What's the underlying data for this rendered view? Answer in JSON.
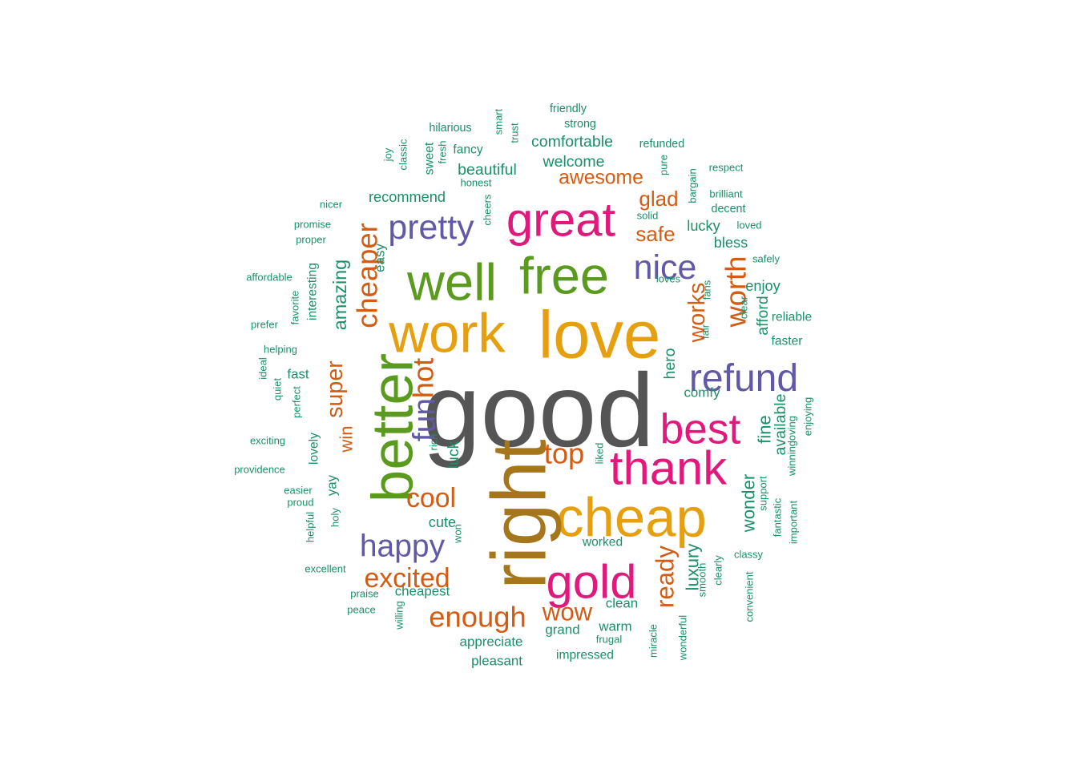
{
  "chart_data": {
    "type": "wordcloud",
    "palette": {
      "grey": "#555555",
      "orange": "#E6A00F",
      "brown": "#A6761D",
      "green": "#5A9A1E",
      "pink": "#E0197C",
      "purple": "#6259A6",
      "rust": "#D35C14",
      "teal": "#1B8F6A"
    },
    "words": [
      {
        "text": "good",
        "color": "grey",
        "weight": 100,
        "rotated": false
      },
      {
        "text": "love",
        "color": "orange",
        "weight": 64,
        "rotated": false
      },
      {
        "text": "work",
        "color": "orange",
        "weight": 53,
        "rotated": false
      },
      {
        "text": "cheap",
        "color": "orange",
        "weight": 53,
        "rotated": false
      },
      {
        "text": "right",
        "color": "brown",
        "weight": 74,
        "rotated": true
      },
      {
        "text": "well",
        "color": "green",
        "weight": 50,
        "rotated": false
      },
      {
        "text": "free",
        "color": "green",
        "weight": 50,
        "rotated": false
      },
      {
        "text": "better",
        "color": "green",
        "weight": 56,
        "rotated": true
      },
      {
        "text": "great",
        "color": "pink",
        "weight": 46,
        "rotated": false
      },
      {
        "text": "gold",
        "color": "pink",
        "weight": 46,
        "rotated": false
      },
      {
        "text": "thank",
        "color": "pink",
        "weight": 46,
        "rotated": false
      },
      {
        "text": "best",
        "color": "pink",
        "weight": 41,
        "rotated": false
      },
      {
        "text": "refund",
        "color": "purple",
        "weight": 37,
        "rotated": false
      },
      {
        "text": "nice",
        "color": "purple",
        "weight": 33,
        "rotated": false
      },
      {
        "text": "pretty",
        "color": "purple",
        "weight": 33,
        "rotated": false
      },
      {
        "text": "happy",
        "color": "purple",
        "weight": 30,
        "rotated": false
      },
      {
        "text": "fun",
        "color": "purple",
        "weight": 30,
        "rotated": true
      },
      {
        "text": "hot",
        "color": "rust",
        "weight": 28,
        "rotated": true
      },
      {
        "text": "cheaper",
        "color": "rust",
        "weight": 28,
        "rotated": true
      },
      {
        "text": "worth",
        "color": "rust",
        "weight": 28,
        "rotated": true
      },
      {
        "text": "top",
        "color": "rust",
        "weight": 28,
        "rotated": false
      },
      {
        "text": "cool",
        "color": "rust",
        "weight": 26,
        "rotated": false
      },
      {
        "text": "excited",
        "color": "rust",
        "weight": 26,
        "rotated": false
      },
      {
        "text": "enough",
        "color": "rust",
        "weight": 28,
        "rotated": false
      },
      {
        "text": "wow",
        "color": "rust",
        "weight": 24,
        "rotated": false
      },
      {
        "text": "ready",
        "color": "rust",
        "weight": 24,
        "rotated": true
      },
      {
        "text": "works",
        "color": "rust",
        "weight": 22,
        "rotated": true
      },
      {
        "text": "super",
        "color": "rust",
        "weight": 22,
        "rotated": true
      },
      {
        "text": "awesome",
        "color": "rust",
        "weight": 19,
        "rotated": false
      },
      {
        "text": "glad",
        "color": "rust",
        "weight": 20,
        "rotated": false
      },
      {
        "text": "safe",
        "color": "rust",
        "weight": 20,
        "rotated": false
      },
      {
        "text": "win",
        "color": "rust",
        "weight": 17,
        "rotated": true
      },
      {
        "text": "amazing",
        "color": "teal",
        "weight": 18,
        "rotated": true
      },
      {
        "text": "luxury",
        "color": "teal",
        "weight": 17,
        "rotated": true
      },
      {
        "text": "wonder",
        "color": "teal",
        "weight": 17,
        "rotated": true
      },
      {
        "text": "fine",
        "color": "teal",
        "weight": 17,
        "rotated": true
      },
      {
        "text": "available",
        "color": "teal",
        "weight": 15,
        "rotated": true
      },
      {
        "text": "luck",
        "color": "teal",
        "weight": 15,
        "rotated": true
      },
      {
        "text": "hero",
        "color": "teal",
        "weight": 15,
        "rotated": true
      },
      {
        "text": "afford",
        "color": "teal",
        "weight": 15,
        "rotated": true
      },
      {
        "text": "comfortable",
        "color": "teal",
        "weight": 15,
        "rotated": false
      },
      {
        "text": "welcome",
        "color": "teal",
        "weight": 15,
        "rotated": false
      },
      {
        "text": "beautiful",
        "color": "teal",
        "weight": 15,
        "rotated": false
      },
      {
        "text": "recommend",
        "color": "teal",
        "weight": 14,
        "rotated": false
      },
      {
        "text": "lucky",
        "color": "teal",
        "weight": 14,
        "rotated": false
      },
      {
        "text": "bless",
        "color": "teal",
        "weight": 14,
        "rotated": false
      },
      {
        "text": "enjoy",
        "color": "teal",
        "weight": 14,
        "rotated": false
      },
      {
        "text": "cute",
        "color": "teal",
        "weight": 14,
        "rotated": false
      },
      {
        "text": "cheapest",
        "color": "teal",
        "weight": 13,
        "rotated": false
      },
      {
        "text": "appreciate",
        "color": "teal",
        "weight": 13,
        "rotated": false
      },
      {
        "text": "grand",
        "color": "teal",
        "weight": 13,
        "rotated": false
      },
      {
        "text": "warm",
        "color": "teal",
        "weight": 13,
        "rotated": false
      },
      {
        "text": "clean",
        "color": "teal",
        "weight": 13,
        "rotated": false
      },
      {
        "text": "pleasant",
        "color": "teal",
        "weight": 13,
        "rotated": false
      },
      {
        "text": "impressed",
        "color": "teal",
        "weight": 12,
        "rotated": false
      },
      {
        "text": "worked",
        "color": "teal",
        "weight": 12,
        "rotated": false
      },
      {
        "text": "fast",
        "color": "teal",
        "weight": 13,
        "rotated": false
      },
      {
        "text": "comfy",
        "color": "teal",
        "weight": 13,
        "rotated": false
      },
      {
        "text": "reliable",
        "color": "teal",
        "weight": 12,
        "rotated": false
      },
      {
        "text": "faster",
        "color": "teal",
        "weight": 12,
        "rotated": false
      },
      {
        "text": "yay",
        "color": "teal",
        "weight": 13,
        "rotated": true
      },
      {
        "text": "easy",
        "color": "teal",
        "weight": 13,
        "rotated": true
      },
      {
        "text": "interesting",
        "color": "teal",
        "weight": 12,
        "rotated": true
      },
      {
        "text": "lovely",
        "color": "teal",
        "weight": 12,
        "rotated": true
      },
      {
        "text": "fancy",
        "color": "teal",
        "weight": 12,
        "rotated": false
      },
      {
        "text": "sweet",
        "color": "teal",
        "weight": 12,
        "rotated": true
      },
      {
        "text": "friendly",
        "color": "teal",
        "weight": 11,
        "rotated": false
      },
      {
        "text": "strong",
        "color": "teal",
        "weight": 11,
        "rotated": false
      },
      {
        "text": "hilarious",
        "color": "teal",
        "weight": 11,
        "rotated": false
      },
      {
        "text": "refunded",
        "color": "teal",
        "weight": 11,
        "rotated": false
      },
      {
        "text": "respect",
        "color": "teal",
        "weight": 10,
        "rotated": false
      },
      {
        "text": "brilliant",
        "color": "teal",
        "weight": 10,
        "rotated": false
      },
      {
        "text": "decent",
        "color": "teal",
        "weight": 11,
        "rotated": false
      },
      {
        "text": "loved",
        "color": "teal",
        "weight": 10,
        "rotated": false
      },
      {
        "text": "safely",
        "color": "teal",
        "weight": 10,
        "rotated": false
      },
      {
        "text": "loves",
        "color": "teal",
        "weight": 10,
        "rotated": false
      },
      {
        "text": "solid",
        "color": "teal",
        "weight": 10,
        "rotated": false
      },
      {
        "text": "honest",
        "color": "teal",
        "weight": 10,
        "rotated": false
      },
      {
        "text": "nicer",
        "color": "teal",
        "weight": 10,
        "rotated": false
      },
      {
        "text": "promise",
        "color": "teal",
        "weight": 10,
        "rotated": false
      },
      {
        "text": "proper",
        "color": "teal",
        "weight": 10,
        "rotated": false
      },
      {
        "text": "affordable",
        "color": "teal",
        "weight": 10,
        "rotated": false
      },
      {
        "text": "prefer",
        "color": "teal",
        "weight": 10,
        "rotated": false
      },
      {
        "text": "helping",
        "color": "teal",
        "weight": 10,
        "rotated": false
      },
      {
        "text": "exciting",
        "color": "teal",
        "weight": 10,
        "rotated": false
      },
      {
        "text": "providence",
        "color": "teal",
        "weight": 10,
        "rotated": false
      },
      {
        "text": "easier",
        "color": "teal",
        "weight": 10,
        "rotated": false
      },
      {
        "text": "proud",
        "color": "teal",
        "weight": 10,
        "rotated": false
      },
      {
        "text": "excellent",
        "color": "teal",
        "weight": 10,
        "rotated": false
      },
      {
        "text": "praise",
        "color": "teal",
        "weight": 10,
        "rotated": false
      },
      {
        "text": "peace",
        "color": "teal",
        "weight": 10,
        "rotated": false
      },
      {
        "text": "frugal",
        "color": "teal",
        "weight": 10,
        "rotated": false
      },
      {
        "text": "classy",
        "color": "teal",
        "weight": 10,
        "rotated": false
      },
      {
        "text": "smart",
        "color": "teal",
        "weight": 10,
        "rotated": true
      },
      {
        "text": "trust",
        "color": "teal",
        "weight": 10,
        "rotated": true
      },
      {
        "text": "cheers",
        "color": "teal",
        "weight": 10,
        "rotated": true
      },
      {
        "text": "joy",
        "color": "teal",
        "weight": 10,
        "rotated": true
      },
      {
        "text": "classic",
        "color": "teal",
        "weight": 10,
        "rotated": true
      },
      {
        "text": "fresh",
        "color": "teal",
        "weight": 10,
        "rotated": true
      },
      {
        "text": "pure",
        "color": "teal",
        "weight": 10,
        "rotated": true
      },
      {
        "text": "bargain",
        "color": "teal",
        "weight": 10,
        "rotated": true
      },
      {
        "text": "favorite",
        "color": "teal",
        "weight": 10,
        "rotated": true
      },
      {
        "text": "fans",
        "color": "teal",
        "weight": 10,
        "rotated": true
      },
      {
        "text": "fair",
        "color": "teal",
        "weight": 10,
        "rotated": true
      },
      {
        "text": "clear",
        "color": "teal",
        "weight": 10,
        "rotated": true
      },
      {
        "text": "ideal",
        "color": "teal",
        "weight": 10,
        "rotated": true
      },
      {
        "text": "quiet",
        "color": "teal",
        "weight": 10,
        "rotated": true
      },
      {
        "text": "perfect",
        "color": "teal",
        "weight": 10,
        "rotated": true
      },
      {
        "text": "rich",
        "color": "teal",
        "weight": 10,
        "rotated": true
      },
      {
        "text": "liked",
        "color": "teal",
        "weight": 10,
        "rotated": true
      },
      {
        "text": "loving",
        "color": "teal",
        "weight": 10,
        "rotated": true
      },
      {
        "text": "enjoying",
        "color": "teal",
        "weight": 10,
        "rotated": true
      },
      {
        "text": "winning",
        "color": "teal",
        "weight": 10,
        "rotated": true
      },
      {
        "text": "support",
        "color": "teal",
        "weight": 10,
        "rotated": true
      },
      {
        "text": "fantastic",
        "color": "teal",
        "weight": 10,
        "rotated": true
      },
      {
        "text": "important",
        "color": "teal",
        "weight": 10,
        "rotated": true
      },
      {
        "text": "helpful",
        "color": "teal",
        "weight": 10,
        "rotated": true
      },
      {
        "text": "holy",
        "color": "teal",
        "weight": 10,
        "rotated": true
      },
      {
        "text": "won",
        "color": "teal",
        "weight": 10,
        "rotated": true
      },
      {
        "text": "smooth",
        "color": "teal",
        "weight": 10,
        "rotated": true
      },
      {
        "text": "clearly",
        "color": "teal",
        "weight": 10,
        "rotated": true
      },
      {
        "text": "convenient",
        "color": "teal",
        "weight": 10,
        "rotated": true
      },
      {
        "text": "willing",
        "color": "teal",
        "weight": 10,
        "rotated": true
      },
      {
        "text": "miracle",
        "color": "teal",
        "weight": 10,
        "rotated": true
      },
      {
        "text": "wonderful",
        "color": "teal",
        "weight": 10,
        "rotated": true
      }
    ]
  }
}
